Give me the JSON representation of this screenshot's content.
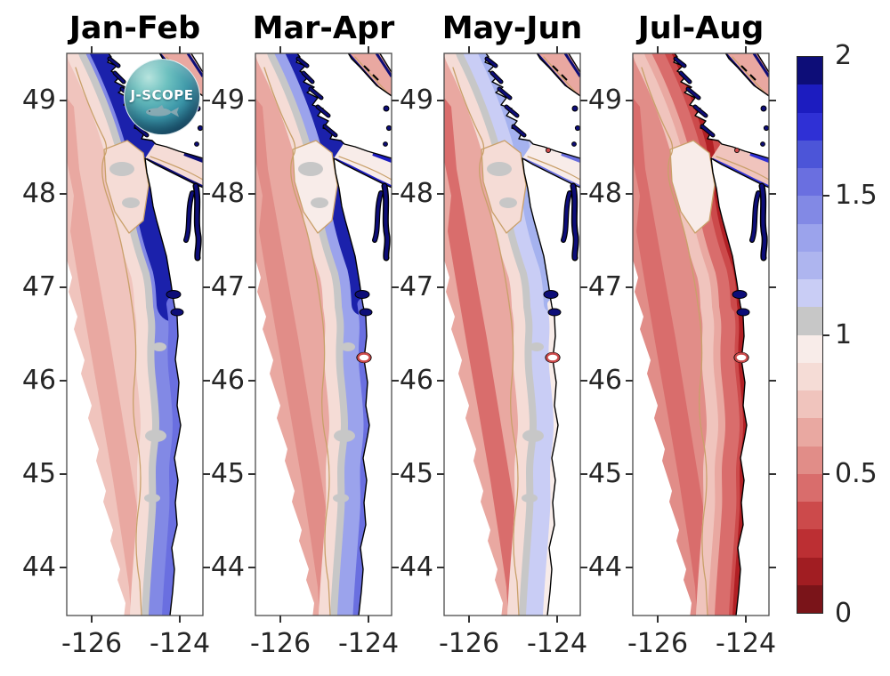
{
  "page": {
    "background": "#ffffff"
  },
  "logo": {
    "label": "J-SCOPE"
  },
  "chart_data": {
    "type": "heatmap",
    "description": "Four bimonthly maps of a 0-2 red-gray-blue index along the Pacific Northwest (Cascadia) coast from the J-SCOPE model; blue (high) nearshore values in winter transition to red (low) values by summer.",
    "panels": [
      {
        "title": "Jan-Feb",
        "band_widths": {
          "north": 40,
          "south": 18
        },
        "regions": {
          "offshore": "#f0c4bd",
          "offshore_deep": "#e9a8a1",
          "pale": "#f5dcd6",
          "gray": "#c7c7c7",
          "band_north": "#1b21ab",
          "band_mid": "#8289e5",
          "band_south": "#6a6fe0",
          "nearshore": "none",
          "strait": "#f5dcd6",
          "strait_fringe": "#0d0d78",
          "eddy": "#f5dcd6",
          "georgia": "#e9a8a1",
          "georgia_fringe": "#0d0d78",
          "puget": "#0d0d78",
          "estuary": "#0d0d78",
          "columbia_ring": "none",
          "red_spot": "none",
          "gray_patches": "#c7c7c7"
        }
      },
      {
        "title": "Mar-Apr",
        "band_widths": {
          "north": 26,
          "south": 13
        },
        "regions": {
          "offshore": "#e9a8a1",
          "offshore_deep": "#e18d88",
          "pale": "#f5dcd6",
          "gray": "#c7c7c7",
          "band_north": "#1b21ab",
          "band_mid": "#9ba3ec",
          "band_south": "#6a6fe0",
          "nearshore": "none",
          "strait": "#f8ece9",
          "strait_fringe": "#1c1cc0",
          "eddy": "#f8ece9",
          "georgia": "#e9a8a1",
          "georgia_fringe": "#0d0d78",
          "puget": "#0d0d78",
          "estuary": "#0d0d78",
          "columbia_ring": "#cc4a4b",
          "red_spot": "none",
          "gray_patches": "#c7c7c7"
        }
      },
      {
        "title": "May-Jun",
        "band_widths": {
          "north": 18,
          "south": 10
        },
        "regions": {
          "offshore": "#e9a8a1",
          "offshore_deep": "#d96d6c",
          "pale": "#f5dcd6",
          "gray": "#c7c7c7",
          "band_north": "#a5b2ef",
          "band_mid": "#c9cdf5",
          "band_south": "#f8ece9",
          "nearshore": "none",
          "strait": "#f8ece9",
          "strait_fringe": "#6a6fe0",
          "eddy": "#f5dcd6",
          "georgia": "#e9a8a1",
          "georgia_fringe": "#0d0d78",
          "puget": "#0d0d78",
          "estuary": "#0d0d78",
          "columbia_ring": "#cc4a4b",
          "red_spot": "#cc4a4b",
          "gray_patches": "#c7c7c7"
        }
      },
      {
        "title": "Jul-Aug",
        "band_widths": {
          "north": 22,
          "south": 16
        },
        "regions": {
          "offshore": "#e18d88",
          "offshore_deep": "#d96d6c",
          "pale": "#f0c4bd",
          "gray": "#e9a8a1",
          "band_north": "#cc4a4b",
          "band_mid": "#d96d6c",
          "band_south": "#cc4a4b",
          "nearshore": "#b11f24",
          "strait": "#f0c4bd",
          "strait_fringe": "#2f30d5",
          "eddy": "#f8ece9",
          "georgia": "#e9a8a1",
          "georgia_fringe": "#0d0d78",
          "puget": "#0d0d78",
          "estuary": "#0d0d78",
          "columbia_ring": "#cc4a4b",
          "red_spot": "#cc4a4b",
          "gray_patches": "none"
        }
      }
    ],
    "x_axis": {
      "tick_labels": [
        "-126",
        "-124"
      ],
      "range": [
        -126.6,
        -123.5
      ]
    },
    "y_axis": {
      "tick_labels": [
        "49",
        "48",
        "47",
        "46",
        "45",
        "44"
      ],
      "range": [
        43.5,
        49.5
      ]
    },
    "colorbar": {
      "range": [
        0,
        2
      ],
      "tick_labels": [
        "2",
        "1.5",
        "1",
        "0.5",
        "0"
      ],
      "bins_top_to_bottom": [
        "#0d0d78",
        "#1c1cc0",
        "#2f30d5",
        "#4c55d8",
        "#6a6fe0",
        "#8289e5",
        "#9ba3ec",
        "#aeb5ef",
        "#c9cdf5",
        "#c7c7c7",
        "#f8ece9",
        "#f5dcd6",
        "#f0c4bd",
        "#e9a8a1",
        "#e18d88",
        "#d96d6c",
        "#cc4a4b",
        "#bc2f33",
        "#a11d22",
        "#7a1419"
      ]
    },
    "map_colors": {
      "land": "#ffffff",
      "coastline": "#000000",
      "contour_tan": "#c9a06a",
      "panel_border": "#4a4a4a",
      "tick": "#333333",
      "label": "#262626"
    }
  }
}
